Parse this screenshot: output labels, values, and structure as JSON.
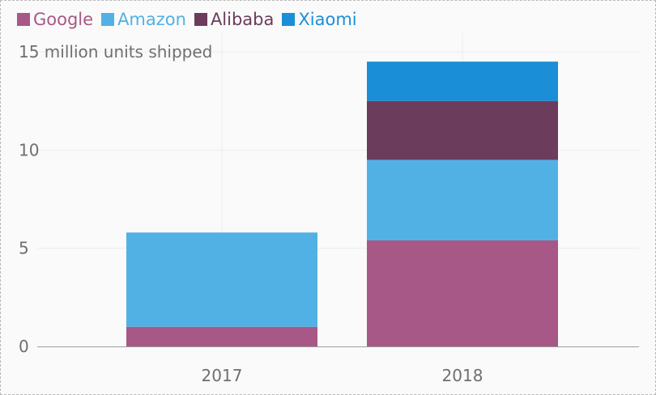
{
  "chart_data": {
    "type": "bar",
    "stacked": true,
    "categories": [
      "2017",
      "2018"
    ],
    "series": [
      {
        "name": "Google",
        "color": "#a85886",
        "values": [
          1.0,
          5.4
        ]
      },
      {
        "name": "Amazon",
        "color": "#52b1e4",
        "values": [
          4.8,
          4.1
        ]
      },
      {
        "name": "Alibaba",
        "color": "#6c3c5c",
        "values": [
          0,
          3.0
        ]
      },
      {
        "name": "Xiaomi",
        "color": "#1a8fd8",
        "values": [
          0,
          2.0
        ]
      }
    ],
    "ylim": [
      0,
      15
    ],
    "y_ticks": [
      "0",
      "5",
      "10"
    ],
    "y_top_tick_label": "15 million units shipped",
    "grid": true,
    "legend_position": "top-left"
  }
}
